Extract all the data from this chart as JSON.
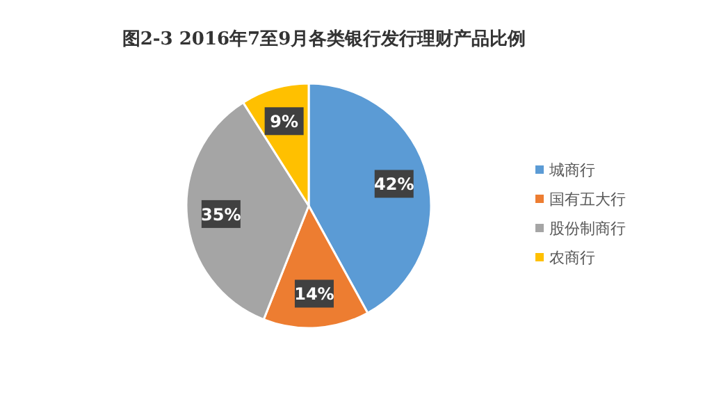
{
  "chart_data": {
    "type": "pie",
    "title": "图2-3 2016年7至9月各类银行发行理财产品比例",
    "categories": [
      "城商行",
      "国有五大行",
      "股份制商行",
      "农商行"
    ],
    "values": [
      42,
      14,
      35,
      9
    ],
    "colors": [
      "#5b9bd5",
      "#ed7d31",
      "#a5a5a5",
      "#ffc000"
    ],
    "value_labels": [
      "42%",
      "14%",
      "35%",
      "9%"
    ],
    "legend": "right"
  }
}
